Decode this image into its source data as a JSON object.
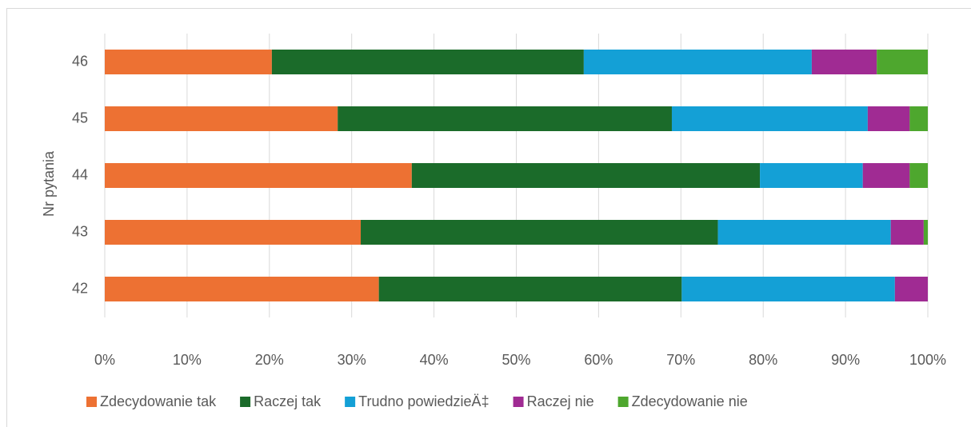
{
  "chart_data": {
    "type": "bar",
    "orientation": "horizontal",
    "stacked": true,
    "y_label": "Nr pytania",
    "categories": [
      "42",
      "43",
      "44",
      "45",
      "46"
    ],
    "series": [
      {
        "name": "Zdecydowanie tak",
        "color": "#ed7133",
        "values": [
          33.3,
          31.1,
          37.3,
          28.3,
          20.3
        ]
      },
      {
        "name": "Raczej tak",
        "color": "#1b6b2a",
        "values": [
          36.8,
          43.4,
          42.3,
          40.6,
          37.9
        ]
      },
      {
        "name": "Trudno powiedzieÄ‡",
        "color": "#14a0d6",
        "values": [
          25.9,
          21.0,
          12.5,
          23.8,
          27.7
        ]
      },
      {
        "name": "Raczej nie",
        "color": "#a02b93",
        "values": [
          4.0,
          4.0,
          5.7,
          5.1,
          7.9
        ]
      },
      {
        "name": "Zdecydowanie nie",
        "color": "#4ea72e",
        "values": [
          0.0,
          0.5,
          2.2,
          2.2,
          6.2
        ]
      }
    ],
    "xlim": [
      0,
      100
    ],
    "xticks": [
      {
        "value": 0,
        "label": "0%"
      },
      {
        "value": 10,
        "label": "10%"
      },
      {
        "value": 20,
        "label": "20%"
      },
      {
        "value": 30,
        "label": "30%"
      },
      {
        "value": 40,
        "label": "40%"
      },
      {
        "value": 50,
        "label": "50%"
      },
      {
        "value": 60,
        "label": "60%"
      },
      {
        "value": 70,
        "label": "70%"
      },
      {
        "value": 80,
        "label": "80%"
      },
      {
        "value": 90,
        "label": "90%"
      },
      {
        "value": 100,
        "label": "100%"
      }
    ],
    "grid": true,
    "legend": "bottom"
  }
}
